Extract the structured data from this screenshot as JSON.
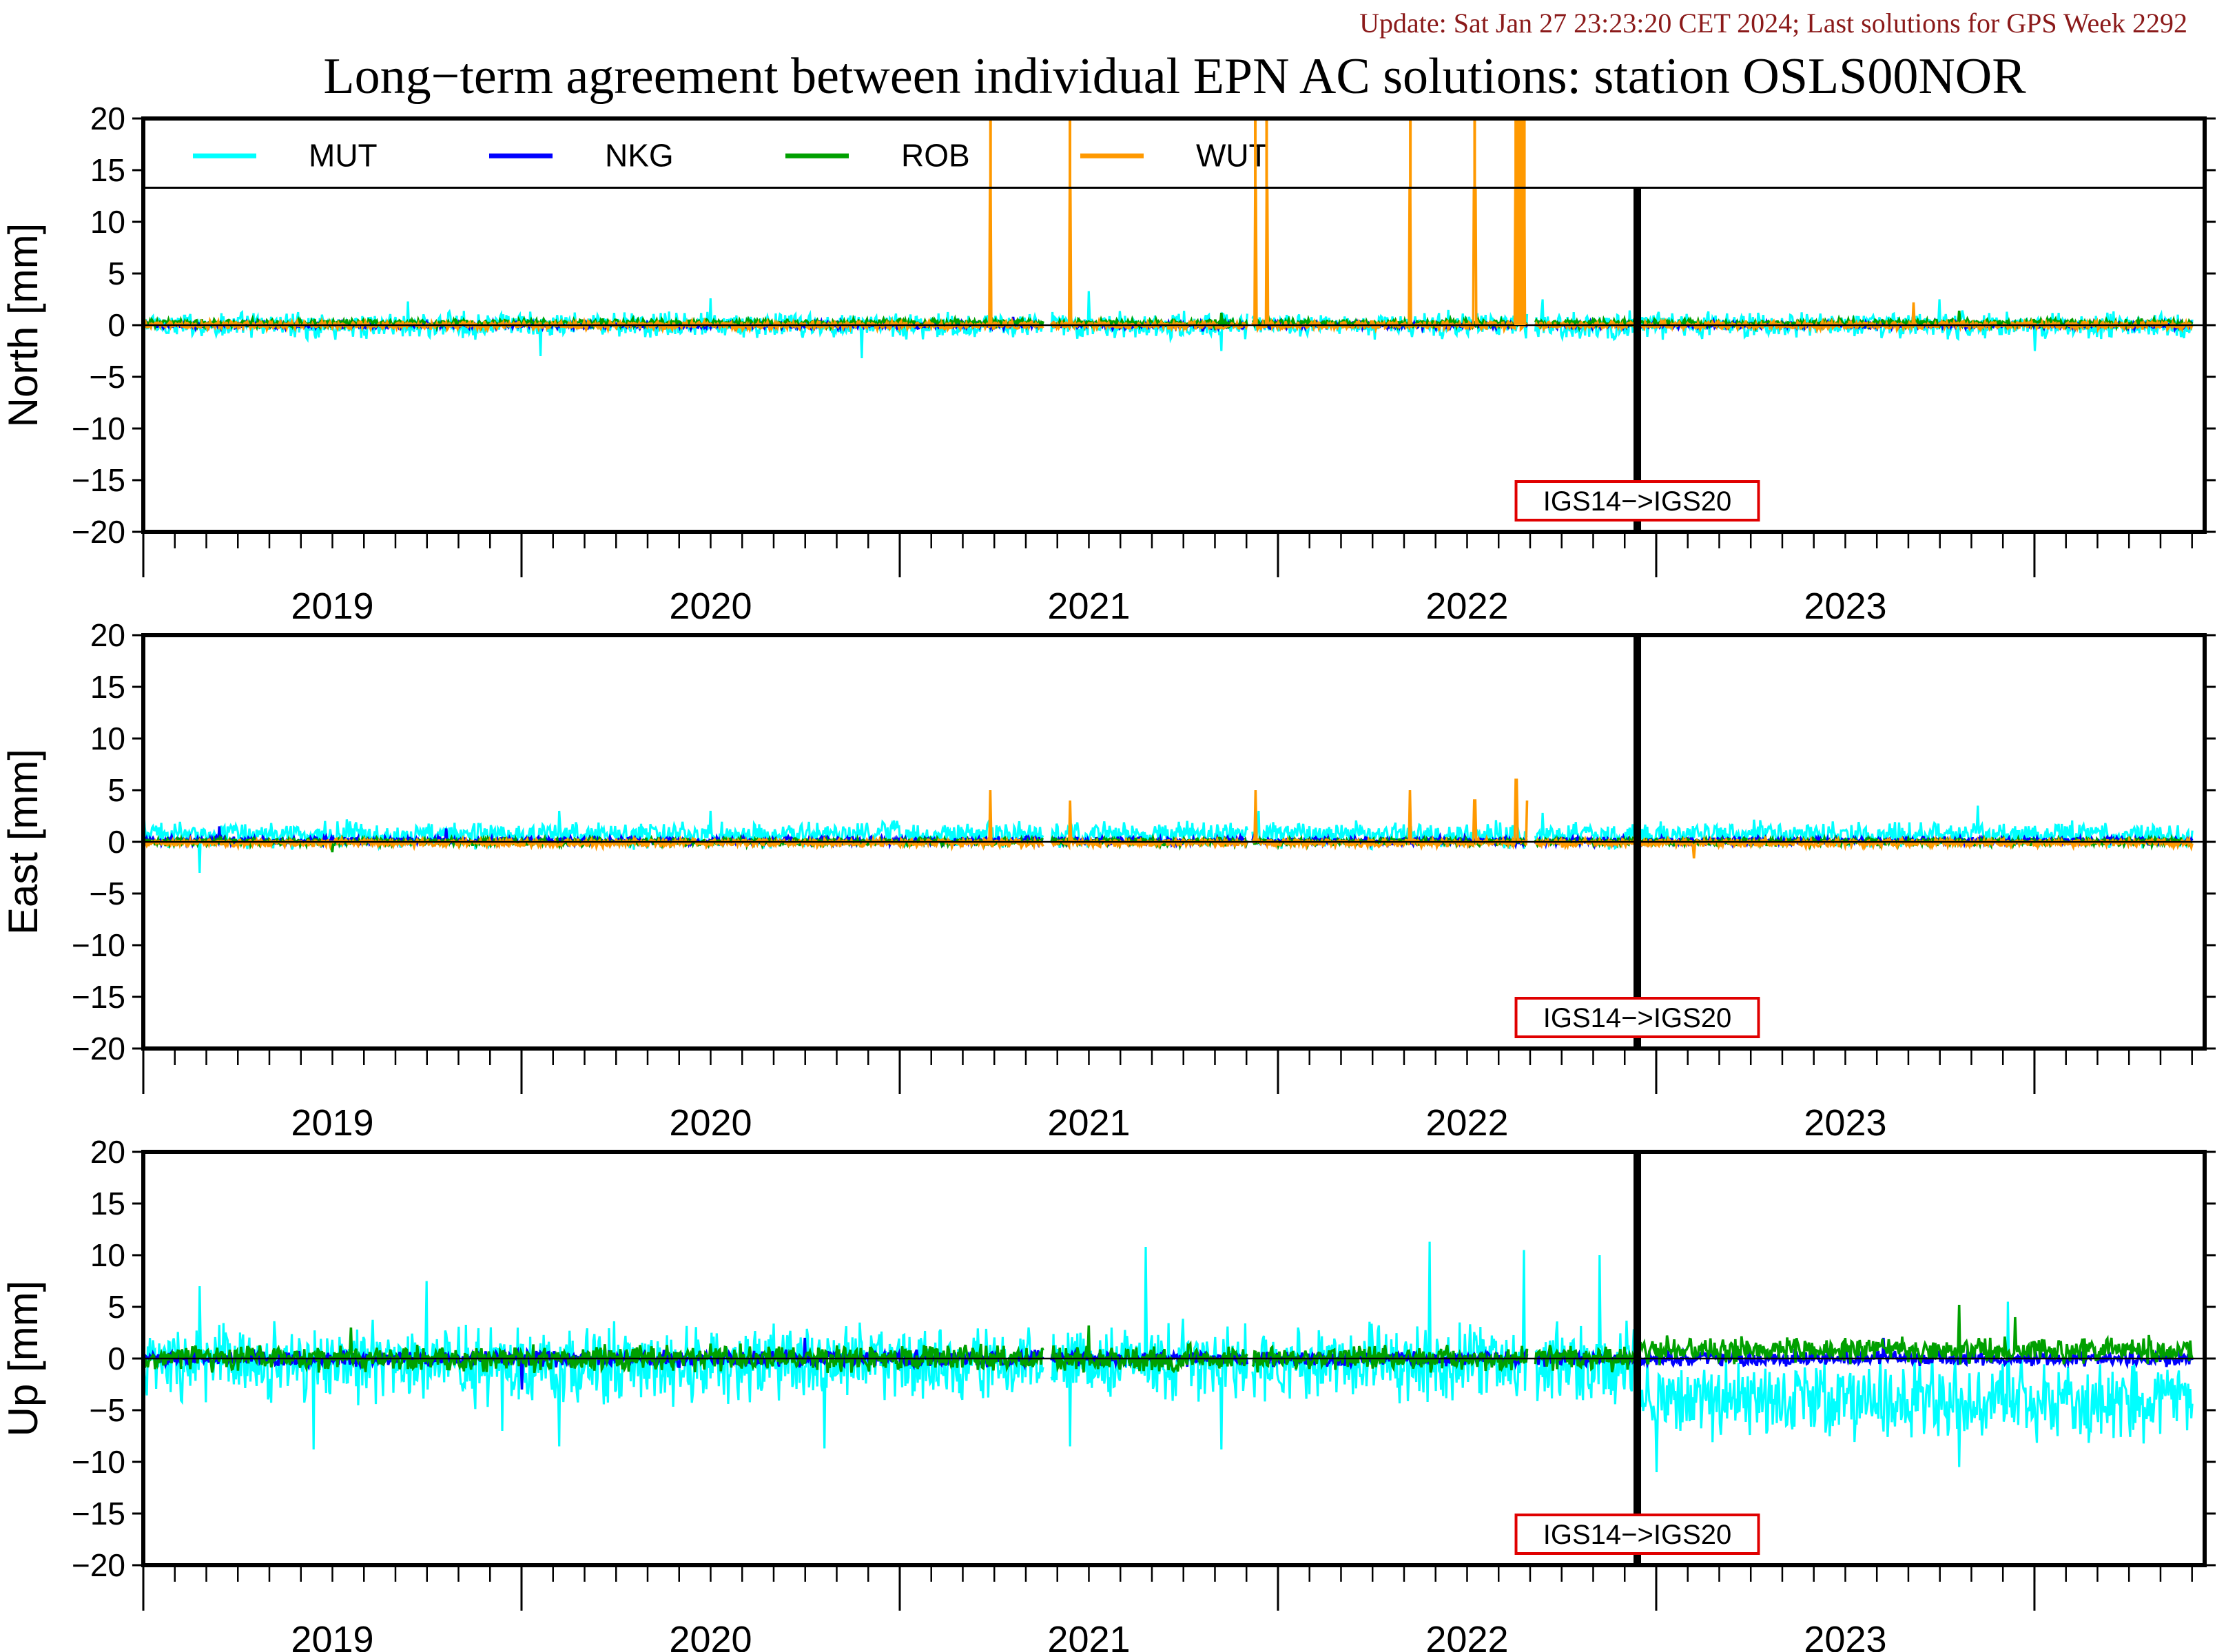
{
  "update_note": "Update: Sat Jan 27 23:23:20 CET 2024; Last solutions for GPS Week 2292",
  "colors": {
    "MUT": "#00ffff",
    "NKG": "#0000ff",
    "ROB": "#00a000",
    "WUT": "#ff9900",
    "update_text": "#8b1a1a",
    "annotation_border": "#e00000"
  },
  "chart_data": {
    "type": "line",
    "title": "Long−term agreement between individual EPN AC solutions: station OSLS00NOR",
    "legend": {
      "placement": "top",
      "entries": [
        "MUT",
        "NKG",
        "ROB",
        "WUT"
      ]
    },
    "x_range": [
      2018.5,
      2023.95
    ],
    "x_tick_labels": [
      "2019",
      "2020",
      "2021",
      "2022",
      "2023"
    ],
    "grid": false,
    "reference_frame_change": {
      "x": 2022.45,
      "label": "IGS14−>IGS20"
    },
    "panels": [
      {
        "name": "north",
        "ylabel": "North [mm]",
        "ylim": [
          -20,
          20
        ],
        "y_ticks": [
          20,
          15,
          10,
          5,
          0,
          -5,
          -10,
          -15,
          -20
        ],
        "series": [
          {
            "name": "MUT",
            "noise_amplitude": 1.0,
            "bias": 0.0,
            "spikes": [
              [
                2019.2,
                2.3
              ],
              [
                2019.55,
                -3.0
              ],
              [
                2020.0,
                2.6
              ],
              [
                2020.4,
                -3.2
              ],
              [
                2021.0,
                3.3
              ],
              [
                2021.35,
                -2.5
              ],
              [
                2022.2,
                2.5
              ],
              [
                2023.25,
                2.5
              ],
              [
                2023.5,
                -2.5
              ]
            ]
          },
          {
            "name": "NKG",
            "noise_amplitude": 0.25,
            "bias": 0.0,
            "spikes": [
              [
                2020.8,
                0.8
              ],
              [
                2021.3,
                -0.6
              ]
            ]
          },
          {
            "name": "ROB",
            "noise_amplitude": 0.3,
            "bias": 0.2,
            "spikes": [
              [
                2021.35,
                1.2
              ],
              [
                2023.3,
                1.4
              ]
            ]
          },
          {
            "name": "WUT",
            "noise_amplitude": 0.3,
            "bias": 0.0,
            "spikes": [
              [
                2020.74,
                20
              ],
              [
                2020.95,
                20
              ],
              [
                2021.44,
                20
              ],
              [
                2021.47,
                20
              ],
              [
                2021.85,
                20
              ],
              [
                2022.02,
                20
              ],
              [
                2022.13,
                20
              ],
              [
                2022.14,
                20
              ],
              [
                2022.15,
                20
              ],
              [
                2023.18,
                2.2
              ]
            ]
          }
        ]
      },
      {
        "name": "east",
        "ylabel": "East [mm]",
        "ylim": [
          -20,
          20
        ],
        "y_ticks": [
          20,
          15,
          10,
          5,
          0,
          -5,
          -10,
          -15,
          -20
        ],
        "series": [
          {
            "name": "MUT",
            "noise_amplitude": 1.0,
            "bias": 0.7,
            "spikes": [
              [
                2018.5,
                3.2
              ],
              [
                2018.65,
                -3.0
              ],
              [
                2019.6,
                3.0
              ],
              [
                2020.0,
                3.0
              ],
              [
                2021.45,
                3.0
              ],
              [
                2022.2,
                2.8
              ],
              [
                2023.35,
                3.5
              ]
            ]
          },
          {
            "name": "NKG",
            "noise_amplitude": 0.3,
            "bias": 0.1,
            "spikes": [
              [
                2018.7,
                1.5
              ],
              [
                2019.3,
                1.3
              ]
            ]
          },
          {
            "name": "ROB",
            "noise_amplitude": 0.3,
            "bias": 0.0,
            "spikes": [
              [
                2019.0,
                -1.0
              ]
            ]
          },
          {
            "name": "WUT",
            "noise_amplitude": 0.3,
            "bias": -0.1,
            "spikes": [
              [
                2020.74,
                5.0
              ],
              [
                2020.95,
                4.0
              ],
              [
                2021.44,
                5.0
              ],
              [
                2021.85,
                5.0
              ],
              [
                2022.02,
                4.0
              ],
              [
                2022.13,
                6.0
              ],
              [
                2022.16,
                4.0
              ],
              [
                2022.6,
                -1.6
              ]
            ]
          }
        ]
      },
      {
        "name": "up",
        "ylabel": "Up [mm]",
        "ylim": [
          -20,
          20
        ],
        "y_ticks": [
          20,
          15,
          10,
          5,
          0,
          -5,
          -10,
          -15,
          -20
        ],
        "series": [
          {
            "name": "MUT",
            "noise_amplitude": 3.0,
            "bias": -0.5,
            "spikes": [
              [
                2018.65,
                7.0
              ],
              [
                2018.95,
                -8.8
              ],
              [
                2019.25,
                7.5
              ],
              [
                2019.45,
                -7.0
              ],
              [
                2019.6,
                -8.5
              ],
              [
                2020.3,
                -8.7
              ],
              [
                2020.95,
                -8.5
              ],
              [
                2021.15,
                10.8
              ],
              [
                2021.35,
                -8.8
              ],
              [
                2021.9,
                11.3
              ],
              [
                2022.15,
                10.5
              ],
              [
                2022.35,
                10.0
              ],
              [
                2022.5,
                -11.0
              ],
              [
                2023.3,
                -10.5
              ],
              [
                2023.43,
                5.5
              ]
            ]
          },
          {
            "name": "NKG",
            "noise_amplitude": 0.6,
            "bias": 0.0,
            "spikes": [
              [
                2019.5,
                -3.0
              ],
              [
                2020.25,
                2.0
              ],
              [
                2022.45,
                2.2
              ],
              [
                2023.1,
                2.0
              ]
            ]
          },
          {
            "name": "ROB",
            "noise_amplitude": 1.0,
            "bias": 0.0,
            "spikes": [
              [
                2019.05,
                3.0
              ],
              [
                2021.0,
                3.2
              ],
              [
                2023.3,
                5.2
              ],
              [
                2023.45,
                4.0
              ]
            ]
          },
          {
            "name": "WUT",
            "noise_amplitude": 0.0,
            "bias": 0.0,
            "spikes": []
          }
        ]
      }
    ]
  }
}
